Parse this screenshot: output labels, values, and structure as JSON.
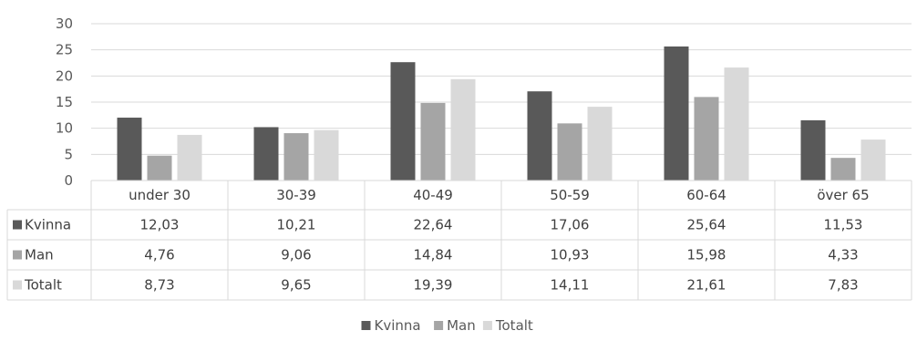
{
  "chart_data": {
    "type": "bar",
    "categories": [
      "under 30",
      "30-39",
      "40-49",
      "50-59",
      "60-64",
      "över 65"
    ],
    "series": [
      {
        "name": "Kvinna",
        "color": "#595959",
        "values": [
          12.03,
          10.21,
          22.64,
          17.06,
          25.64,
          11.53
        ],
        "labels": [
          "12,03",
          "10,21",
          "22,64",
          "17,06",
          "25,64",
          "11,53"
        ]
      },
      {
        "name": "Man",
        "color": "#a5a5a5",
        "values": [
          4.76,
          9.06,
          14.84,
          10.93,
          15.98,
          4.33
        ],
        "labels": [
          "4,76",
          "9,06",
          "14,84",
          "10,93",
          "15,98",
          "4,33"
        ]
      },
      {
        "name": "Totalt",
        "color": "#d9d9d9",
        "values": [
          8.73,
          9.65,
          19.39,
          14.11,
          21.61,
          7.83
        ],
        "labels": [
          "8,73",
          "9,65",
          "19,39",
          "14,11",
          "21,61",
          "7,83"
        ]
      }
    ],
    "ylim": [
      0,
      30
    ],
    "yticks": [
      "0",
      "5",
      "10",
      "15",
      "20",
      "25",
      "30"
    ],
    "grid": true,
    "data_table": true,
    "legend_position": "bottom"
  }
}
